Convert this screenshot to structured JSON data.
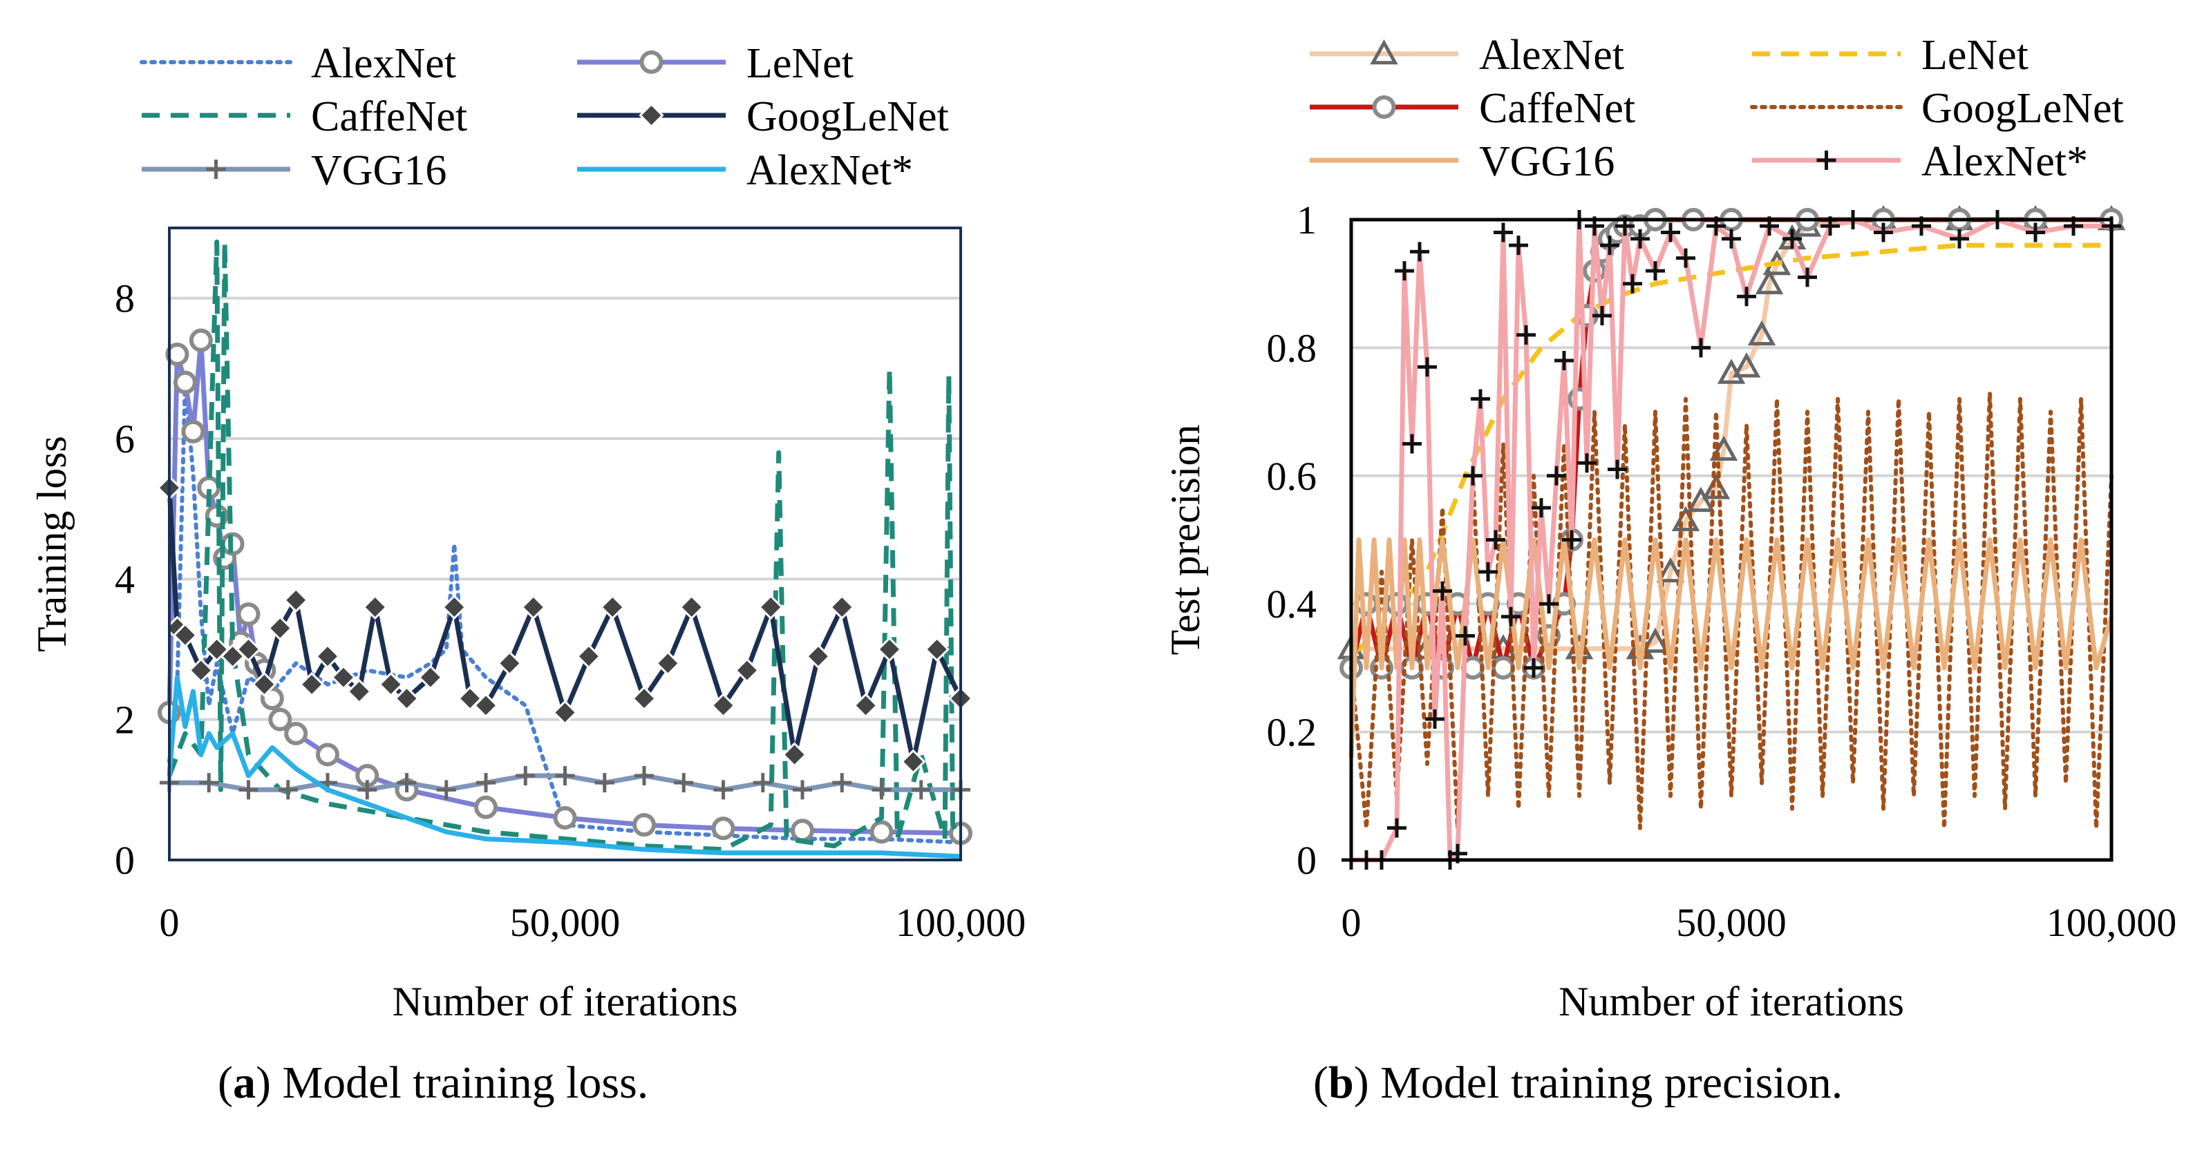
{
  "captions": {
    "a_label": "a",
    "a_text": "Model training loss.",
    "b_label": "b",
    "b_text": "Model training precision."
  },
  "chart_data": [
    {
      "type": "line",
      "id": "loss",
      "title": "",
      "xlabel": "Number of iterations",
      "ylabel": "Training loss",
      "xlim": [
        0,
        100000
      ],
      "ylim": [
        0,
        9
      ],
      "xticks": [
        0,
        50000,
        100000
      ],
      "xtick_labels": [
        "0",
        "50,000",
        "100,000"
      ],
      "yticks": [
        0,
        2,
        4,
        6,
        8
      ],
      "ytick_labels": [
        "0",
        "2",
        "4",
        "6",
        "8"
      ],
      "grid": true,
      "legend_position": "top",
      "series": [
        {
          "name": "AlexNet",
          "color": "#4a7fd4",
          "style": "dotted",
          "marker": "none",
          "x": [
            0,
            1000,
            2000,
            3000,
            4000,
            5000,
            6000,
            8000,
            10000,
            13000,
            16000,
            20000,
            25000,
            30000,
            33000,
            35000,
            36000,
            37000,
            40000,
            45000,
            50000,
            60000,
            70000,
            80000,
            90000,
            100000
          ],
          "y": [
            1.4,
            2.5,
            6.8,
            5.5,
            3.5,
            2.2,
            2.8,
            1.8,
            2.6,
            2.4,
            2.8,
            2.5,
            2.7,
            2.6,
            2.8,
            3.0,
            4.5,
            3.0,
            2.6,
            2.2,
            0.5,
            0.4,
            0.35,
            0.3,
            0.3,
            0.25
          ]
        },
        {
          "name": "LeNet",
          "color": "#7b7fd6",
          "style": "solid",
          "marker": "circle",
          "x": [
            0,
            1000,
            2000,
            3000,
            4000,
            5000,
            6000,
            7000,
            8000,
            9000,
            10000,
            11000,
            12000,
            13000,
            14000,
            16000,
            20000,
            25000,
            30000,
            40000,
            50000,
            60000,
            70000,
            80000,
            90000,
            100000
          ],
          "y": [
            2.1,
            7.2,
            6.8,
            6.1,
            7.4,
            5.3,
            4.9,
            4.3,
            4.5,
            3.1,
            3.5,
            2.8,
            2.7,
            2.3,
            2.0,
            1.8,
            1.5,
            1.2,
            1.0,
            0.75,
            0.6,
            0.5,
            0.45,
            0.42,
            0.4,
            0.38
          ]
        },
        {
          "name": "CaffeNet",
          "color": "#1f8a7a",
          "style": "dashed",
          "marker": "none",
          "x": [
            0,
            2000,
            4000,
            6000,
            6500,
            7000,
            8000,
            10000,
            14000,
            20000,
            30000,
            40000,
            50000,
            60000,
            70000,
            76000,
            77000,
            78000,
            84000,
            90000,
            91000,
            92000,
            95000,
            98000,
            98500,
            99000,
            100000
          ],
          "y": [
            1.2,
            1.8,
            1.5,
            8.8,
            1.0,
            8.8,
            3.0,
            1.5,
            1.0,
            0.8,
            0.6,
            0.4,
            0.3,
            0.2,
            0.15,
            0.5,
            5.8,
            0.3,
            0.2,
            0.6,
            7.0,
            0.3,
            1.5,
            0.3,
            6.9,
            0.5,
            0.3
          ]
        },
        {
          "name": "GoogLeNet",
          "color": "#1b2f52",
          "style": "solid",
          "marker": "diamond",
          "x": [
            0,
            1000,
            2000,
            4000,
            6000,
            8000,
            10000,
            12000,
            14000,
            16000,
            18000,
            20000,
            22000,
            24000,
            26000,
            28000,
            30000,
            33000,
            36000,
            38000,
            40000,
            43000,
            46000,
            50000,
            53000,
            56000,
            60000,
            63000,
            66000,
            70000,
            73000,
            76000,
            79000,
            82000,
            85000,
            88000,
            91000,
            94000,
            97000,
            100000
          ],
          "y": [
            5.3,
            3.3,
            3.2,
            2.7,
            3.0,
            2.9,
            3.0,
            2.5,
            3.3,
            3.7,
            2.5,
            2.9,
            2.6,
            2.4,
            3.6,
            2.5,
            2.3,
            2.6,
            3.6,
            2.3,
            2.2,
            2.8,
            3.6,
            2.1,
            2.9,
            3.6,
            2.3,
            2.8,
            3.6,
            2.2,
            2.7,
            3.6,
            1.5,
            2.9,
            3.6,
            2.2,
            3.0,
            1.4,
            3.0,
            2.3
          ]
        },
        {
          "name": "VGG16",
          "color": "#7f95b8",
          "style": "solid",
          "marker": "plus",
          "x": [
            0,
            5000,
            10000,
            15000,
            20000,
            25000,
            30000,
            35000,
            40000,
            45000,
            50000,
            55000,
            60000,
            65000,
            70000,
            75000,
            80000,
            85000,
            90000,
            95000,
            100000
          ],
          "y": [
            1.1,
            1.1,
            1.0,
            1.0,
            1.1,
            1.0,
            1.1,
            1.0,
            1.1,
            1.2,
            1.2,
            1.1,
            1.2,
            1.1,
            1.0,
            1.1,
            1.0,
            1.1,
            1.0,
            1.0,
            1.0
          ]
        },
        {
          "name": "AlexNet*",
          "color": "#2ab0e8",
          "style": "solid",
          "marker": "none",
          "x": [
            0,
            1000,
            2000,
            3000,
            4000,
            5000,
            6000,
            8000,
            10000,
            13000,
            16000,
            20000,
            25000,
            30000,
            35000,
            40000,
            50000,
            60000,
            70000,
            80000,
            90000,
            100000
          ],
          "y": [
            1.2,
            2.6,
            1.9,
            2.4,
            1.5,
            1.8,
            1.6,
            1.8,
            1.2,
            1.6,
            1.3,
            1.0,
            0.8,
            0.6,
            0.4,
            0.3,
            0.25,
            0.15,
            0.1,
            0.1,
            0.1,
            0.05
          ]
        }
      ]
    },
    {
      "type": "line",
      "id": "precision",
      "title": "",
      "xlabel": "Number of iterations",
      "ylabel": "Test precision",
      "xlim": [
        0,
        100000
      ],
      "ylim": [
        0,
        1
      ],
      "xticks": [
        0,
        50000,
        100000
      ],
      "xtick_labels": [
        "0",
        "50,000",
        "100,000"
      ],
      "yticks": [
        0,
        0.2,
        0.4,
        0.6,
        0.8,
        1
      ],
      "ytick_labels": [
        "0",
        "0.2",
        "0.4",
        "0.6",
        "0.8",
        "1"
      ],
      "grid": true,
      "legend_position": "top",
      "series": [
        {
          "name": "AlexNet",
          "color": "#f3c9a6",
          "style": "solid",
          "marker": "triangle",
          "x": [
            0,
            10000,
            20000,
            30000,
            38000,
            40000,
            42000,
            44000,
            46000,
            48000,
            49000,
            50000,
            52000,
            54000,
            55000,
            56000,
            58000,
            60000,
            70000,
            80000,
            90000,
            100000
          ],
          "y": [
            0.33,
            0.33,
            0.33,
            0.33,
            0.33,
            0.34,
            0.45,
            0.53,
            0.56,
            0.58,
            0.64,
            0.76,
            0.77,
            0.82,
            0.9,
            0.93,
            0.97,
            0.99,
            1.0,
            1.0,
            1.0,
            1.0
          ]
        },
        {
          "name": "LeNet",
          "color": "#f5c21b",
          "style": "dashed",
          "marker": "none",
          "x": [
            0,
            5000,
            10000,
            15000,
            20000,
            25000,
            30000,
            35000,
            40000,
            50000,
            60000,
            70000,
            80000,
            90000,
            100000
          ],
          "y": [
            0.32,
            0.37,
            0.45,
            0.6,
            0.72,
            0.8,
            0.85,
            0.88,
            0.9,
            0.92,
            0.94,
            0.95,
            0.96,
            0.96,
            0.96
          ]
        },
        {
          "name": "CaffeNet",
          "color": "#c41818",
          "style": "solid",
          "marker": "circle",
          "x": [
            0,
            2000,
            4000,
            6000,
            8000,
            10000,
            12000,
            14000,
            16000,
            18000,
            20000,
            22000,
            24000,
            26000,
            28000,
            29000,
            30000,
            31000,
            32000,
            33000,
            34000,
            35000,
            36000,
            38000,
            40000,
            45000,
            50000,
            60000,
            70000,
            80000,
            90000,
            100000
          ],
          "y": [
            0.3,
            0.4,
            0.3,
            0.4,
            0.3,
            0.4,
            0.3,
            0.4,
            0.3,
            0.4,
            0.3,
            0.4,
            0.3,
            0.35,
            0.4,
            0.5,
            0.72,
            0.85,
            0.92,
            0.95,
            0.97,
            0.98,
            0.99,
            0.99,
            1.0,
            1.0,
            1.0,
            1.0,
            1.0,
            1.0,
            1.0,
            1.0
          ]
        },
        {
          "name": "GoogLeNet",
          "color": "#a0501a",
          "style": "dotted",
          "marker": "none",
          "x": [
            0,
            2000,
            4000,
            6000,
            8000,
            10000,
            12000,
            14000,
            16000,
            18000,
            20000,
            22000,
            24000,
            26000,
            28000,
            30000,
            32000,
            34000,
            36000,
            38000,
            40000,
            42000,
            44000,
            46000,
            48000,
            50000,
            52000,
            54000,
            56000,
            58000,
            60000,
            62000,
            64000,
            66000,
            68000,
            70000,
            72000,
            74000,
            76000,
            78000,
            80000,
            82000,
            84000,
            86000,
            88000,
            90000,
            92000,
            94000,
            96000,
            98000,
            100000
          ],
          "y": [
            0.3,
            0.05,
            0.45,
            0.1,
            0.5,
            0.15,
            0.55,
            0.05,
            0.6,
            0.1,
            0.65,
            0.08,
            0.6,
            0.1,
            0.65,
            0.1,
            0.7,
            0.12,
            0.68,
            0.05,
            0.7,
            0.1,
            0.72,
            0.08,
            0.7,
            0.1,
            0.68,
            0.12,
            0.72,
            0.08,
            0.7,
            0.1,
            0.72,
            0.12,
            0.7,
            0.08,
            0.72,
            0.1,
            0.7,
            0.05,
            0.72,
            0.1,
            0.73,
            0.08,
            0.72,
            0.1,
            0.7,
            0.12,
            0.72,
            0.05,
            0.6
          ]
        },
        {
          "name": "VGG16",
          "color": "#eab07c",
          "style": "solid",
          "marker": "none",
          "x": [
            0,
            1000,
            2000,
            3000,
            4000,
            5000,
            6000,
            7000,
            8000,
            9000,
            10000,
            12000,
            14000,
            16000,
            18000,
            20000,
            22000,
            24000,
            26000,
            28000,
            30000,
            32000,
            34000,
            36000,
            38000,
            40000,
            42000,
            44000,
            46000,
            48000,
            50000,
            52000,
            54000,
            56000,
            58000,
            60000,
            62000,
            64000,
            66000,
            68000,
            70000,
            72000,
            74000,
            76000,
            78000,
            80000,
            82000,
            84000,
            86000,
            88000,
            90000,
            92000,
            94000,
            96000,
            98000,
            100000
          ],
          "y": [
            0.16,
            0.5,
            0.3,
            0.5,
            0.3,
            0.5,
            0.3,
            0.5,
            0.3,
            0.5,
            0.3,
            0.5,
            0.3,
            0.5,
            0.3,
            0.5,
            0.3,
            0.5,
            0.3,
            0.5,
            0.3,
            0.5,
            0.3,
            0.5,
            0.3,
            0.5,
            0.3,
            0.5,
            0.3,
            0.5,
            0.3,
            0.5,
            0.3,
            0.5,
            0.3,
            0.5,
            0.3,
            0.5,
            0.3,
            0.5,
            0.3,
            0.5,
            0.3,
            0.5,
            0.3,
            0.5,
            0.3,
            0.5,
            0.3,
            0.5,
            0.3,
            0.5,
            0.3,
            0.5,
            0.3,
            0.38
          ]
        },
        {
          "name": "AlexNet*",
          "color": "#f4a5aa",
          "style": "solid",
          "marker": "plus",
          "x": [
            0,
            2000,
            4000,
            6000,
            7000,
            8000,
            9000,
            10000,
            11000,
            12000,
            13000,
            14000,
            15000,
            16000,
            17000,
            18000,
            19000,
            20000,
            21000,
            22000,
            23000,
            24000,
            25000,
            26000,
            27000,
            28000,
            29000,
            30000,
            31000,
            32000,
            33000,
            34000,
            35000,
            36000,
            37000,
            38000,
            40000,
            42000,
            44000,
            46000,
            48000,
            50000,
            52000,
            55000,
            58000,
            60000,
            63000,
            66000,
            70000,
            75000,
            80000,
            85000,
            90000,
            95000,
            100000
          ],
          "y": [
            0,
            0,
            0,
            0.05,
            0.92,
            0.65,
            0.95,
            0.77,
            0.22,
            0.42,
            0.0,
            0.01,
            0.35,
            0.6,
            0.72,
            0.45,
            0.5,
            0.98,
            0.38,
            0.96,
            0.82,
            0.3,
            0.55,
            0.4,
            0.6,
            0.78,
            0.5,
            1.0,
            0.62,
            0.99,
            0.85,
            0.96,
            0.61,
            0.99,
            0.9,
            0.97,
            0.92,
            0.98,
            0.94,
            0.8,
            0.99,
            0.97,
            0.88,
            0.99,
            0.97,
            0.91,
            0.99,
            1.0,
            0.98,
            0.99,
            0.97,
            1.0,
            0.98,
            0.99,
            0.99
          ]
        }
      ]
    }
  ]
}
